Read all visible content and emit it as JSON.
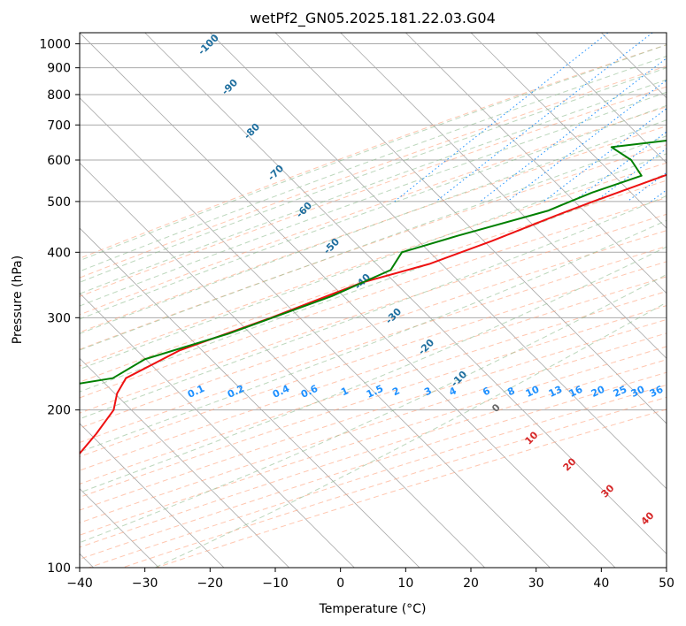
{
  "chart_data": {
    "type": "line",
    "title": "wetPf2_GN05.2025.181.22.03.G04",
    "xlabel": "Temperature (°C)",
    "ylabel": "Pressure (hPa)",
    "xlim": [
      -40,
      50
    ],
    "ylim": [
      1050,
      100
    ],
    "y_scale": "log",
    "grid": true,
    "x_ticks": [
      "−40",
      "−30",
      "−20",
      "−10",
      "0",
      "10",
      "20",
      "30",
      "40",
      "50"
    ],
    "y_ticks": [
      "100",
      "200",
      "300",
      "400",
      "500",
      "600",
      "700",
      "800",
      "900",
      "1000"
    ],
    "skew_degrees": 45,
    "series": [
      {
        "color": "#ee1111",
        "p": [
          100,
          120,
          150,
          180,
          200,
          215,
          230,
          260,
          300,
          350,
          380,
          420,
          470,
          500,
          560,
          620,
          680,
          740,
          800,
          860,
          920,
          970,
          990
        ],
        "t": [
          -56,
          -56.5,
          -57,
          -58,
          -59,
          -61,
          -62,
          -58,
          -49,
          -40.5,
          -33,
          -27,
          -21,
          -17.5,
          -10.5,
          -5,
          0,
          4.5,
          8,
          10.5,
          11.5,
          11,
          10
        ]
      },
      {
        "color": "#008000",
        "p": [
          100,
          120,
          150,
          170,
          185,
          195,
          205,
          220,
          230,
          250,
          280,
          330,
          370,
          400,
          430,
          480,
          500,
          520,
          560,
          600,
          635,
          660,
          700,
          730,
          760,
          800,
          830,
          870,
          910,
          950,
          980,
          990
        ],
        "t": [
          -60,
          -64,
          -69,
          -76,
          -83,
          -87,
          -85,
          -72,
          -64,
          -62,
          -53,
          -43,
          -38,
          -39,
          -33,
          -23,
          -21,
          -19,
          -14,
          -18,
          -23,
          -13,
          -1,
          2,
          3,
          6,
          7,
          9,
          10,
          9,
          9,
          8
        ]
      }
    ],
    "dry_adiabat_labels": [
      "-100",
      "-90",
      "-80",
      "-70",
      "-60",
      "-50",
      "-40",
      "-30",
      "-20",
      "-10"
    ],
    "mixing_ratio_labels": [
      "0.1",
      "0.2",
      "0.4",
      "0.6",
      "1",
      "1.5",
      "2",
      "3",
      "4",
      "6",
      "8",
      "10",
      "13",
      "16",
      "20",
      "25",
      "30",
      "36"
    ],
    "mixing_ratio_values": [
      0.1,
      0.2,
      0.4,
      0.6,
      1,
      1.5,
      2,
      3,
      4,
      6,
      8,
      10,
      13,
      16,
      20,
      25,
      30,
      36
    ],
    "moist_adiabat_labels": [
      "0",
      "10",
      "20",
      "30",
      "40"
    ],
    "colors": {
      "temperature": "#ee1111",
      "dewpoint": "#008000",
      "dry_adiabat": "#ffa07a",
      "moist_adiabat": "#8fbc8f",
      "mixing_ratio": "#1e90ff",
      "isotherm_grid": "#a9a9a9",
      "dry_label": "#1f6f9f",
      "moist_label": "#d62728"
    }
  }
}
